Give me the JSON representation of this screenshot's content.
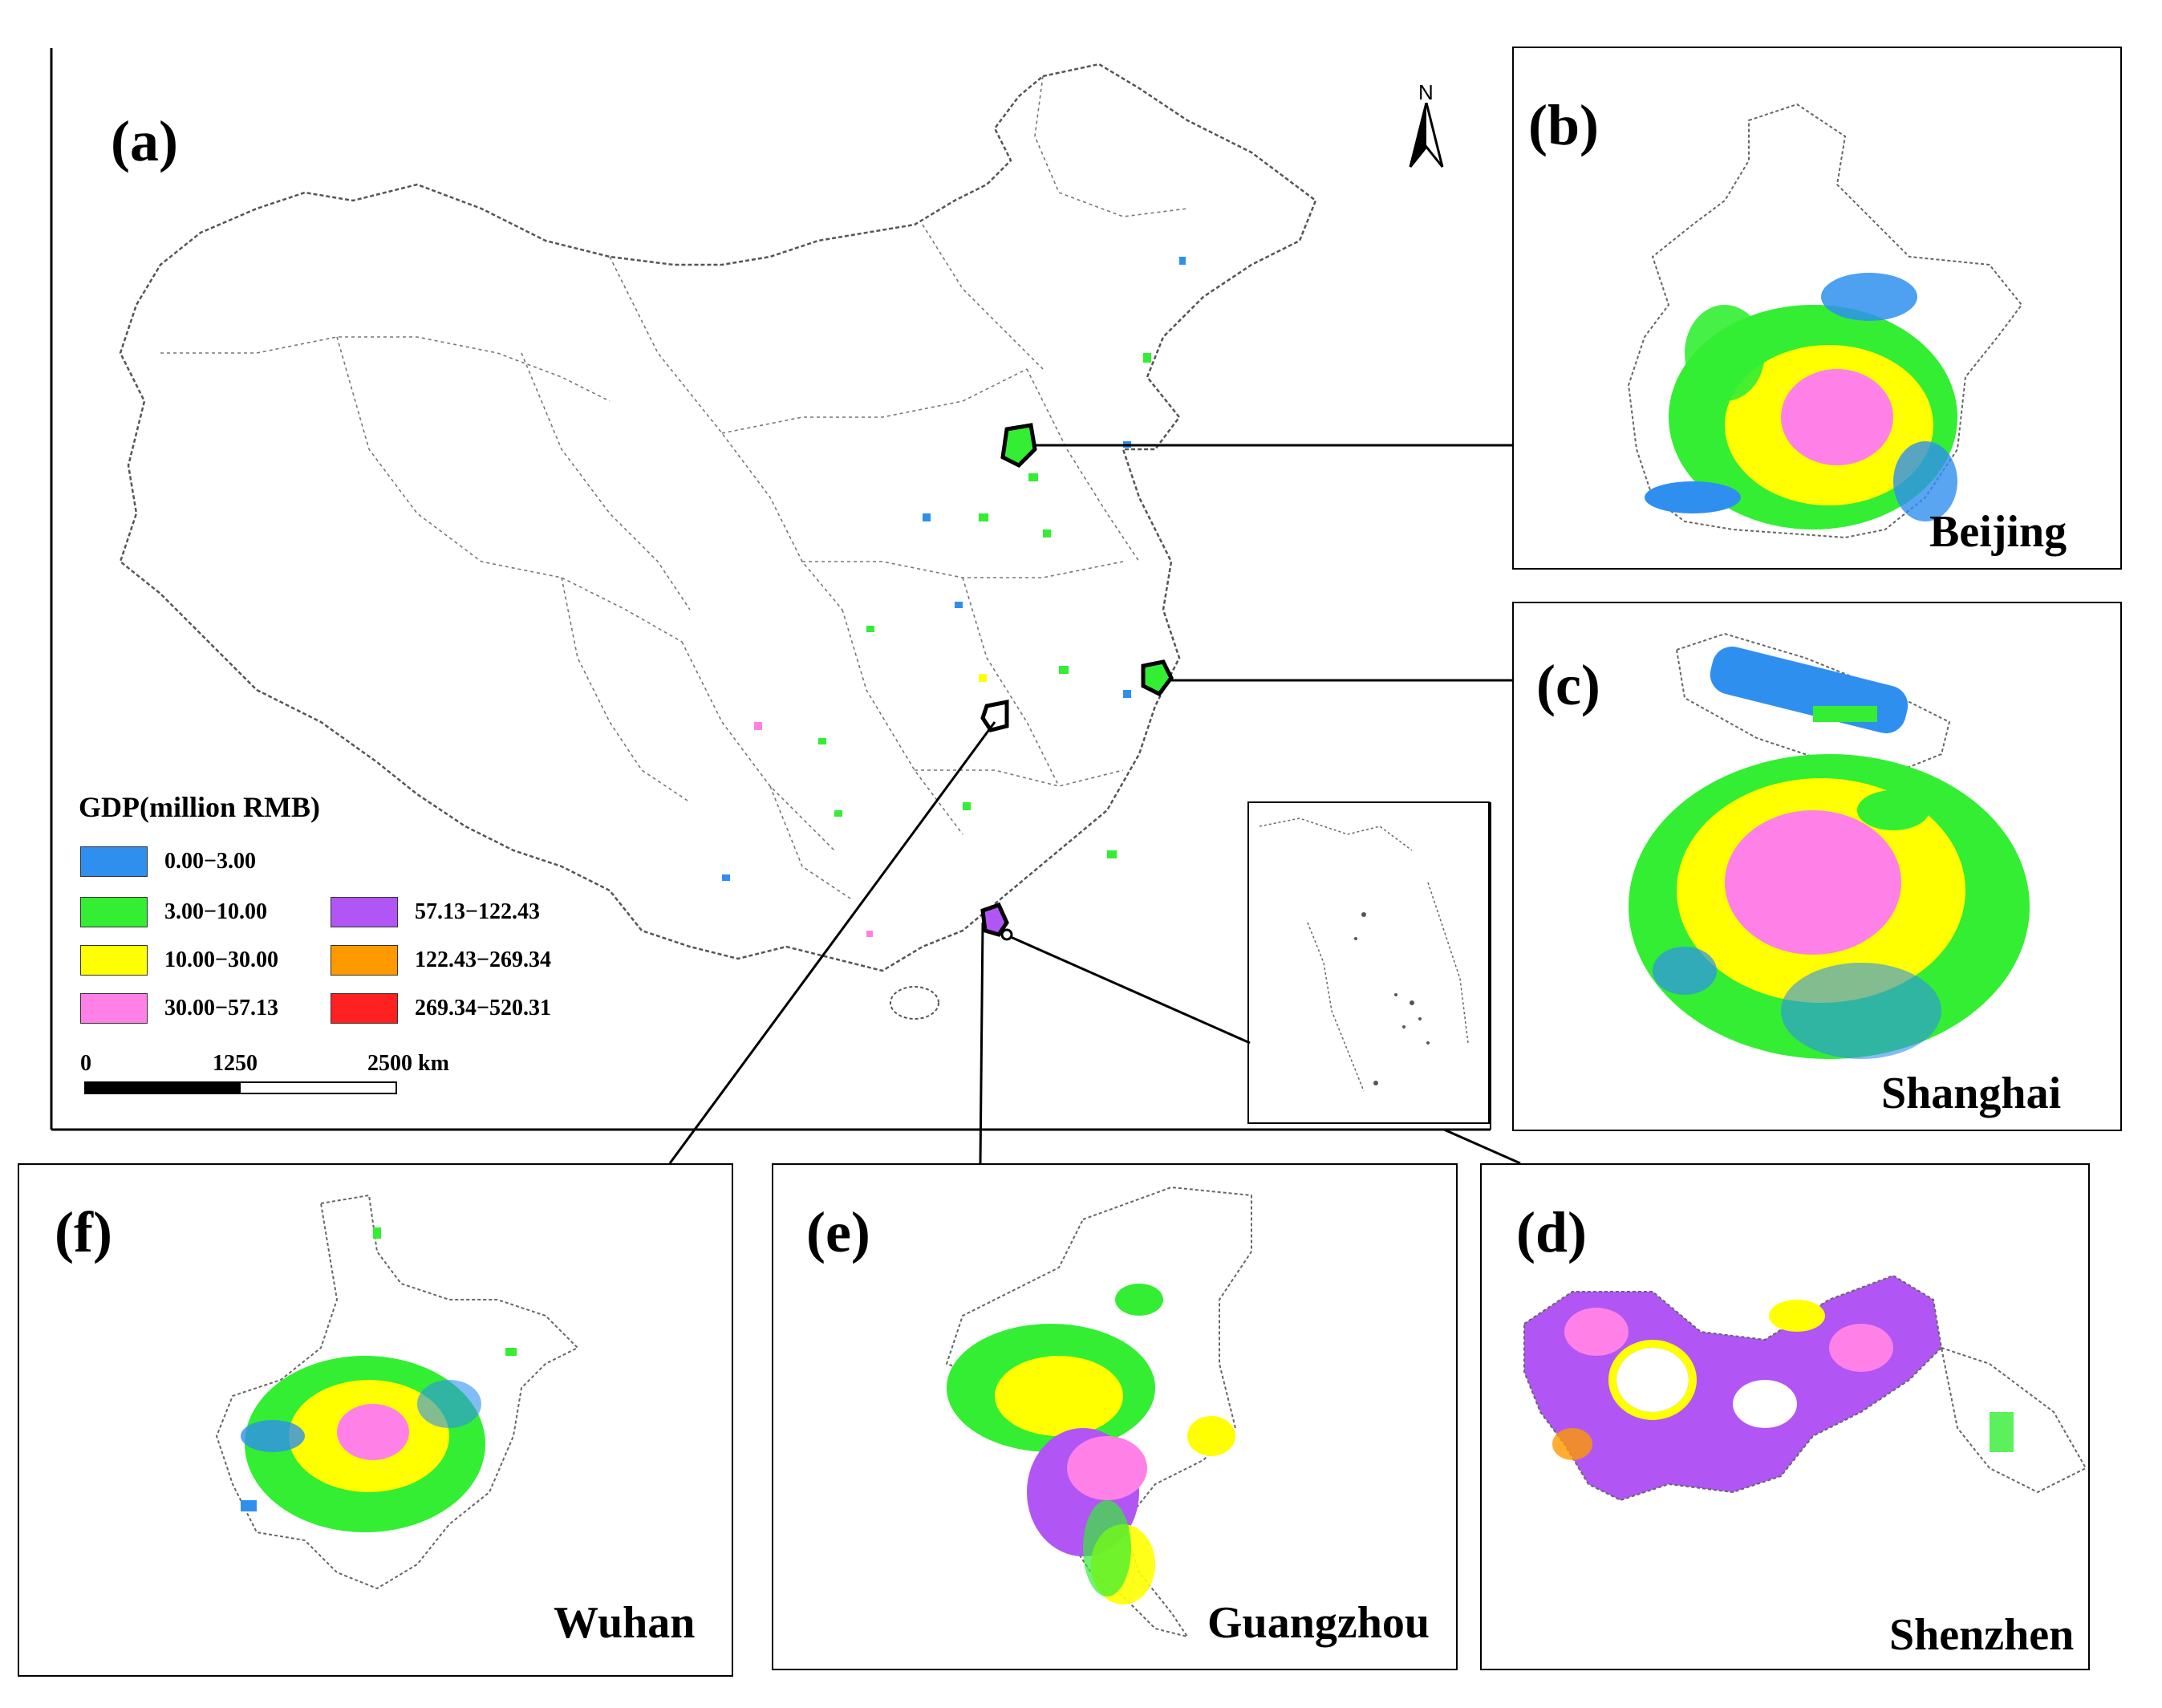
{
  "panels": {
    "a": {
      "label": "(a)"
    },
    "b": {
      "label": "(b)",
      "city": "Beijing"
    },
    "c": {
      "label": "(c)",
      "city": "Shanghai"
    },
    "d": {
      "label": "(d)",
      "city": "Shenzhen"
    },
    "e": {
      "label": "(e)",
      "city": "Guangzhou"
    },
    "f": {
      "label": "(f)",
      "city": "Wuhan"
    }
  },
  "north_arrow": "N",
  "legend": {
    "title": "GDP(million RMB)",
    "classes": [
      {
        "range": "0.00−3.00",
        "color": "#2f8fef"
      },
      {
        "range": "3.00−10.00",
        "color": "#33ee33"
      },
      {
        "range": "10.00−30.00",
        "color": "#ffff00"
      },
      {
        "range": "30.00−57.13",
        "color": "#ff80e6"
      },
      {
        "range": "57.13−122.43",
        "color": "#b155f5"
      },
      {
        "range": "122.43−269.34",
        "color": "#ff9900"
      },
      {
        "range": "269.34−520.31",
        "color": "#ff2020"
      }
    ]
  },
  "scale_bar": {
    "ticks": [
      "0",
      "1250",
      "2500 km"
    ]
  }
}
